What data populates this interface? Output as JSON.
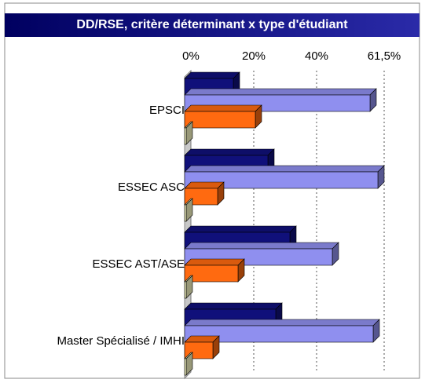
{
  "chart_data": {
    "type": "bar",
    "orientation": "horizontal",
    "title": "DD/RSE, critère déterminant x type d'étudiant",
    "categories": [
      "EPSCI",
      "ESSEC ASC",
      "ESSEC AST/ASE",
      "Master Spécialisé / IMHI"
    ],
    "series": [
      {
        "color": "#10107a",
        "values": [
          15.5,
          26.5,
          33.5,
          29
        ]
      },
      {
        "color": "#8f8fef",
        "values": [
          59,
          61.5,
          47,
          60
        ]
      },
      {
        "color": "#ff6a10",
        "values": [
          22.5,
          10.5,
          17,
          9
        ]
      },
      {
        "color": "#fefec8",
        "values": [
          0.5,
          0.5,
          0.5,
          0.5
        ]
      }
    ],
    "xlim": [
      0,
      61.5
    ],
    "xticks": [
      {
        "value": 0,
        "label": "0%"
      },
      {
        "value": 20,
        "label": "20%"
      },
      {
        "value": 40,
        "label": "40%"
      },
      {
        "value": 61.5,
        "label": "61,5%"
      }
    ],
    "grid": true
  }
}
